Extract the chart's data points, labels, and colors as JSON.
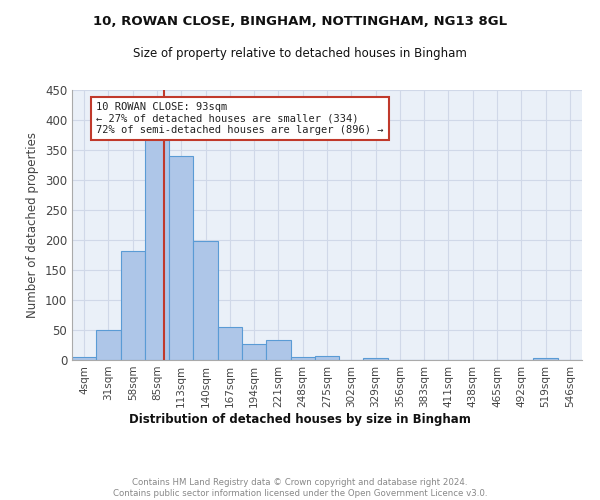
{
  "title1": "10, ROWAN CLOSE, BINGHAM, NOTTINGHAM, NG13 8GL",
  "title2": "Size of property relative to detached houses in Bingham",
  "xlabel": "Distribution of detached houses by size in Bingham",
  "ylabel": "Number of detached properties",
  "footnote": "Contains HM Land Registry data © Crown copyright and database right 2024.\nContains public sector information licensed under the Open Government Licence v3.0.",
  "bin_labels": [
    "4sqm",
    "31sqm",
    "58sqm",
    "85sqm",
    "113sqm",
    "140sqm",
    "167sqm",
    "194sqm",
    "221sqm",
    "248sqm",
    "275sqm",
    "302sqm",
    "329sqm",
    "356sqm",
    "383sqm",
    "411sqm",
    "438sqm",
    "465sqm",
    "492sqm",
    "519sqm",
    "546sqm"
  ],
  "bar_values": [
    5,
    50,
    181,
    370,
    340,
    199,
    55,
    27,
    33,
    5,
    6,
    0,
    4,
    0,
    0,
    0,
    0,
    0,
    0,
    4,
    0
  ],
  "bar_color": "#AEC6E8",
  "bar_edge_color": "#5A9BD5",
  "grid_color": "#D0D8E8",
  "bg_color": "#EAF0F8",
  "vline_x": 3.27,
  "vline_color": "#C0392B",
  "annotation_text": "10 ROWAN CLOSE: 93sqm\n← 27% of detached houses are smaller (334)\n72% of semi-detached houses are larger (896) →",
  "annotation_box_color": "#FFFFFF",
  "annotation_box_edge": "#C0392B",
  "ylim": [
    0,
    450
  ],
  "yticks": [
    0,
    50,
    100,
    150,
    200,
    250,
    300,
    350,
    400,
    450
  ]
}
